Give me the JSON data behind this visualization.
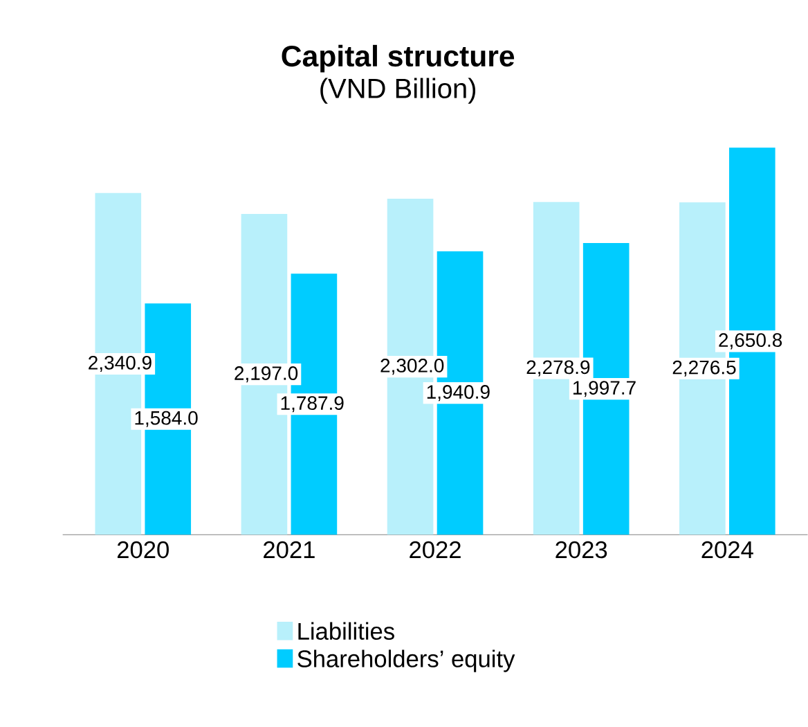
{
  "chart_data": {
    "type": "bar",
    "title": "Capital structure",
    "subtitle": "(VND Billion)",
    "categories": [
      "2020",
      "2021",
      "2022",
      "2023",
      "2024"
    ],
    "series": [
      {
        "name": "Liabilities",
        "color": "#b8f0fb",
        "values": [
          2340.9,
          2197.0,
          2302.0,
          2278.9,
          2276.5
        ],
        "value_labels": [
          "2,340.9",
          "2,197.0",
          "2,302.0",
          "2,278.9",
          "2,276.5"
        ]
      },
      {
        "name": "Shareholders’ equity",
        "color": "#00ccff",
        "values": [
          1584.0,
          1787.9,
          1940.9,
          1997.7,
          2650.8
        ],
        "value_labels": [
          "1,584.0",
          "1,787.9",
          "1,940.9",
          "1,997.7",
          "2,650.8"
        ]
      }
    ],
    "legend": "bottom"
  }
}
